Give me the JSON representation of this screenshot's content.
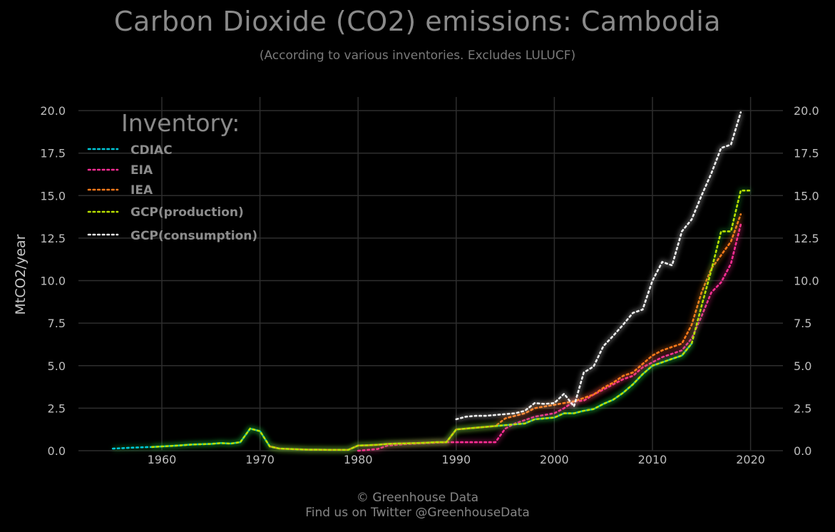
{
  "header": {
    "title": "Carbon Dioxide (CO2) emissions: Cambodia",
    "subtitle": "(According to various inventories. Excludes LULUCF)"
  },
  "footer": {
    "line1": "© Greenhouse Data",
    "line2": "Find us on Twitter @GreenhouseData"
  },
  "colors": {
    "CDIAC": "#00c8d8",
    "EIA": "#ff2d95",
    "IEA": "#ff7a1a",
    "GCP(production)": "#b8e000",
    "GCP(consumption)": "#f0f0f0",
    "grid": "#2e2e2e"
  },
  "chart_data": {
    "type": "line",
    "title": "Carbon Dioxide (CO2) emissions: Cambodia",
    "subtitle": "(According to various inventories. Excludes LULUCF)",
    "xlabel": "",
    "ylabel": "MtCO2/year",
    "xlim": [
      1951.5,
      2023.3
    ],
    "ylim": [
      0,
      20.8
    ],
    "xticks": [
      "1960",
      "1970",
      "1980",
      "1990",
      "2000",
      "2010",
      "2020"
    ],
    "yticks": [
      "0.0",
      "2.5",
      "5.0",
      "7.5",
      "10.0",
      "12.5",
      "15.0",
      "17.5",
      "20.0"
    ],
    "grid": true,
    "legend_title": "Inventory:",
    "legend_position": "top-left",
    "series": [
      {
        "name": "CDIAC",
        "x": [
          1955,
          1956,
          1957,
          1958,
          1959,
          1960,
          1961,
          1962,
          1963,
          1964,
          1965,
          1966,
          1967,
          1968,
          1969,
          1970,
          1971,
          1972,
          1973,
          1974,
          1975,
          1976,
          1977,
          1978,
          1979,
          1980,
          1981,
          1982,
          1983,
          1984,
          1985,
          1986,
          1987,
          1988,
          1989,
          1990,
          1991,
          1992,
          1993,
          1994,
          1995,
          1996,
          1997,
          1998,
          1999,
          2000,
          2001,
          2002,
          2003,
          2004,
          2005,
          2006,
          2007,
          2008,
          2009,
          2010,
          2011,
          2012,
          2013,
          2014
        ],
        "y": [
          0.12,
          0.15,
          0.18,
          0.2,
          0.22,
          0.25,
          0.28,
          0.32,
          0.36,
          0.38,
          0.4,
          0.45,
          0.42,
          0.5,
          1.3,
          1.15,
          0.25,
          0.12,
          0.1,
          0.08,
          0.06,
          0.06,
          0.05,
          0.05,
          0.05,
          0.3,
          0.32,
          0.35,
          0.4,
          0.42,
          0.43,
          0.45,
          0.47,
          0.5,
          0.5,
          1.25,
          1.3,
          1.35,
          1.4,
          1.45,
          1.5,
          1.55,
          1.6,
          1.85,
          1.9,
          1.95,
          2.2,
          2.2,
          2.35,
          2.45,
          2.75,
          3.0,
          3.4,
          3.9,
          4.5,
          5.0,
          5.2,
          5.4,
          5.6,
          6.3
        ]
      },
      {
        "name": "EIA",
        "x": [
          1980,
          1981,
          1982,
          1983,
          1984,
          1985,
          1986,
          1987,
          1988,
          1989,
          1990,
          1991,
          1992,
          1993,
          1994,
          1995,
          1996,
          1997,
          1998,
          1999,
          2000,
          2001,
          2002,
          2003,
          2004,
          2005,
          2006,
          2007,
          2008,
          2009,
          2010,
          2011,
          2012,
          2013,
          2014,
          2015,
          2016,
          2017,
          2018,
          2019
        ],
        "y": [
          0.0,
          0.05,
          0.1,
          0.3,
          0.35,
          0.4,
          0.42,
          0.45,
          0.47,
          0.5,
          0.5,
          0.5,
          0.5,
          0.5,
          0.5,
          1.3,
          1.6,
          1.8,
          2.0,
          2.1,
          2.2,
          2.5,
          2.9,
          2.95,
          3.3,
          3.6,
          3.9,
          4.2,
          4.4,
          4.9,
          5.2,
          5.5,
          5.7,
          5.9,
          6.6,
          7.9,
          9.3,
          9.9,
          11.0,
          13.3
        ]
      },
      {
        "name": "IEA",
        "x": [
          1971,
          1972,
          1973,
          1974,
          1975,
          1976,
          1977,
          1978,
          1979,
          1980,
          1981,
          1982,
          1983,
          1984,
          1985,
          1986,
          1987,
          1988,
          1989,
          1990,
          1991,
          1992,
          1993,
          1994,
          1995,
          1996,
          1997,
          1998,
          1999,
          2000,
          2001,
          2002,
          2003,
          2004,
          2005,
          2006,
          2007,
          2008,
          2009,
          2010,
          2011,
          2012,
          2013,
          2014,
          2015,
          2016,
          2017,
          2018,
          2019
        ],
        "y": [
          0.25,
          0.12,
          0.1,
          0.08,
          0.06,
          0.06,
          0.05,
          0.05,
          0.05,
          0.3,
          0.32,
          0.35,
          0.4,
          0.42,
          0.43,
          0.45,
          0.47,
          0.5,
          0.5,
          1.25,
          1.3,
          1.35,
          1.4,
          1.45,
          1.9,
          2.05,
          2.2,
          2.5,
          2.6,
          2.7,
          2.8,
          2.9,
          3.1,
          3.3,
          3.7,
          4.0,
          4.4,
          4.6,
          5.1,
          5.6,
          5.9,
          6.1,
          6.3,
          7.4,
          9.3,
          10.7,
          11.5,
          12.3,
          13.9
        ]
      },
      {
        "name": "GCP(production)",
        "x": [
          1959,
          1960,
          1961,
          1962,
          1963,
          1964,
          1965,
          1966,
          1967,
          1968,
          1969,
          1970,
          1971,
          1972,
          1973,
          1974,
          1975,
          1976,
          1977,
          1978,
          1979,
          1980,
          1981,
          1982,
          1983,
          1984,
          1985,
          1986,
          1987,
          1988,
          1989,
          1990,
          1991,
          1992,
          1993,
          1994,
          1995,
          1996,
          1997,
          1998,
          1999,
          2000,
          2001,
          2002,
          2003,
          2004,
          2005,
          2006,
          2007,
          2008,
          2009,
          2010,
          2011,
          2012,
          2013,
          2014,
          2015,
          2016,
          2017,
          2018,
          2019,
          2020
        ],
        "y": [
          0.22,
          0.25,
          0.28,
          0.32,
          0.36,
          0.38,
          0.4,
          0.45,
          0.42,
          0.5,
          1.3,
          1.15,
          0.25,
          0.12,
          0.1,
          0.08,
          0.06,
          0.06,
          0.05,
          0.05,
          0.05,
          0.3,
          0.32,
          0.35,
          0.4,
          0.42,
          0.43,
          0.45,
          0.47,
          0.5,
          0.5,
          1.25,
          1.3,
          1.35,
          1.4,
          1.45,
          1.5,
          1.55,
          1.6,
          1.85,
          1.9,
          1.95,
          2.2,
          2.2,
          2.35,
          2.45,
          2.75,
          3.0,
          3.4,
          3.9,
          4.5,
          5.0,
          5.2,
          5.4,
          5.6,
          6.3,
          8.5,
          10.6,
          12.9,
          12.9,
          15.3,
          15.3
        ]
      },
      {
        "name": "GCP(consumption)",
        "x": [
          1990,
          1991,
          1992,
          1993,
          1994,
          1995,
          1996,
          1997,
          1998,
          1999,
          2000,
          2001,
          2002,
          2003,
          2004,
          2005,
          2006,
          2007,
          2008,
          2009,
          2010,
          2011,
          2012,
          2013,
          2014,
          2015,
          2016,
          2017,
          2018,
          2019
        ],
        "y": [
          1.85,
          2.0,
          2.05,
          2.05,
          2.1,
          2.15,
          2.2,
          2.35,
          2.8,
          2.75,
          2.8,
          3.35,
          2.6,
          4.6,
          4.95,
          6.15,
          6.75,
          7.4,
          8.1,
          8.3,
          10.0,
          11.1,
          10.9,
          12.9,
          13.6,
          15.0,
          16.3,
          17.8,
          18.0,
          19.9
        ]
      }
    ]
  }
}
